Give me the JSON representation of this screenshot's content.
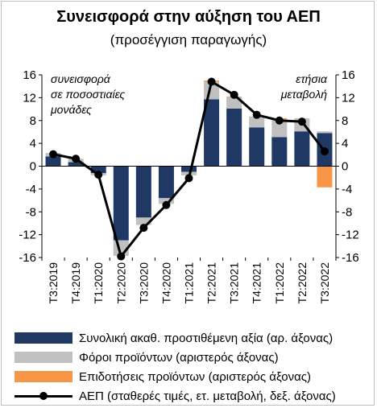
{
  "header": {
    "title": "Συνεισφορά στην αύξηση του ΑΕΠ",
    "subtitle": "(προσέγγιση παραγωγής)"
  },
  "annotations": {
    "left": [
      "συνεισφορά",
      "σε ποσοστιαίες",
      "μονάδες"
    ],
    "right": [
      "ετήσια",
      "μεταβολή"
    ]
  },
  "chart_data": {
    "type": "bar",
    "categories": [
      "Τ3:2019",
      "Τ4:2019",
      "Τ1:2020",
      "Τ2:2020",
      "Τ3:2020",
      "Τ4:2020",
      "Τ1:2021",
      "Τ2:2021",
      "Τ3:2021",
      "Τ4:2021",
      "Τ1:2022",
      "Τ2:2022",
      "Τ3:2022"
    ],
    "series": [
      {
        "name": "Συνολική ακαθ. προστιθέμενη αξία (αρ. άξονας)",
        "kind": "stacked-bar",
        "color": "#1f3864",
        "values": [
          1.7,
          0.7,
          -1.2,
          -13.0,
          -9.0,
          -5.6,
          -1.0,
          11.7,
          10.1,
          6.8,
          5.1,
          6.1,
          5.8
        ]
      },
      {
        "name": "Φόροι προϊόντων (αριστερός άξονας)",
        "kind": "stacked-bar",
        "color": "#c0c0c0",
        "values": [
          0.6,
          0.6,
          -0.4,
          -2.7,
          -1.3,
          -1.0,
          -0.6,
          3.1,
          2.0,
          1.9,
          3.1,
          2.3,
          0.3
        ]
      },
      {
        "name": "Επιδοτήσεις προϊόντων (αριστερός άξονας)",
        "kind": "stacked-bar",
        "color": "#f79646",
        "values": [
          0.0,
          0.0,
          0.0,
          0.0,
          0.0,
          0.0,
          0.0,
          0.2,
          0.1,
          0.0,
          0.2,
          -0.1,
          -3.7
        ]
      },
      {
        "name": "ΑΕΠ (σταθερές τιμές, ετ. μεταβολή, δεξ. άξονας)",
        "kind": "line-markers",
        "color": "#000000",
        "values": [
          2.1,
          1.3,
          -1.5,
          -15.8,
          -10.8,
          -6.8,
          -2.1,
          14.8,
          12.5,
          9.0,
          8.0,
          7.8,
          2.6
        ]
      }
    ],
    "ylim": [
      -16,
      16
    ],
    "yticks": [
      16,
      12,
      8,
      4,
      0,
      -4,
      -8,
      -12,
      -16
    ],
    "y2lim": [
      -16,
      16
    ],
    "grid": false,
    "legend_position": "bottom"
  }
}
